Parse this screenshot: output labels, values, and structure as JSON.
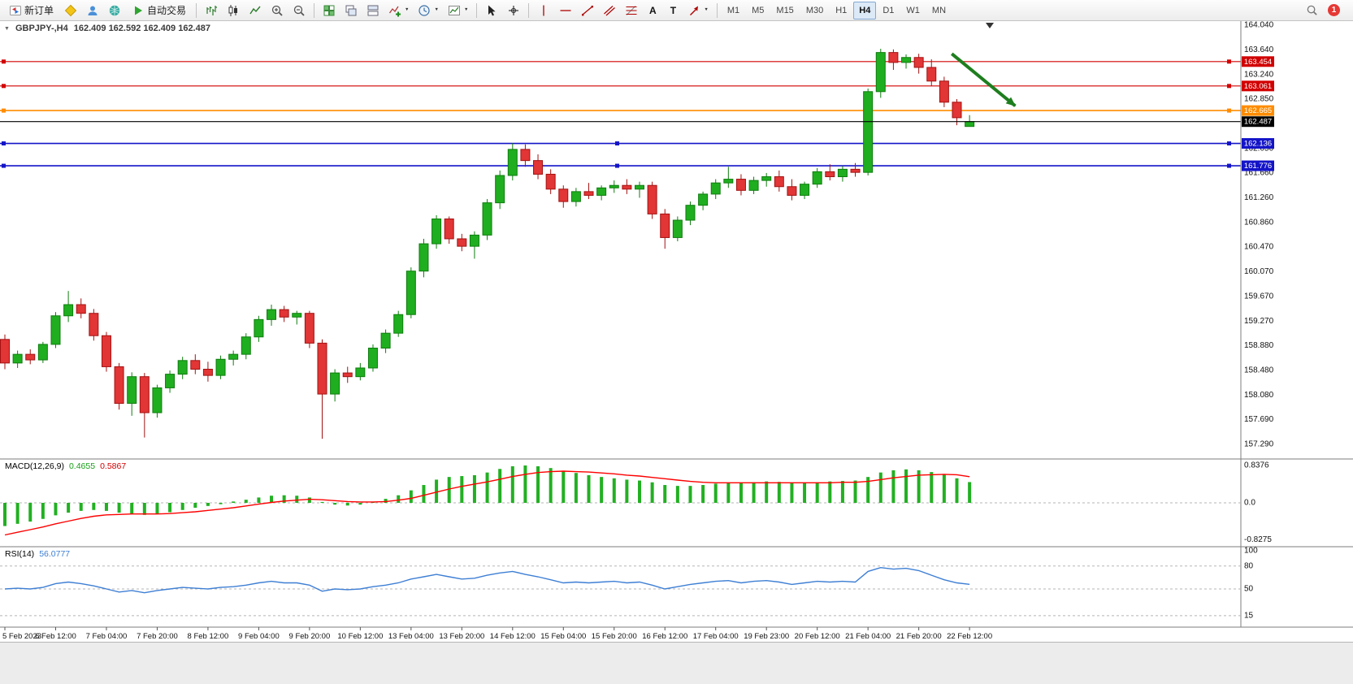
{
  "toolbar": {
    "new_order_label": "新订单",
    "autotrading_label": "自动交易",
    "timeframes": [
      "M1",
      "M5",
      "M15",
      "M30",
      "H1",
      "H4",
      "D1",
      "W1",
      "MN"
    ],
    "active_timeframe": "H4",
    "notification_count": "1"
  },
  "icons": {
    "one_click_trading": "▼",
    "dropdown_caret": "▼",
    "text_tool": "A",
    "label_tool": "T"
  },
  "chart": {
    "title": "GBPJPY-,H4",
    "ohlc_line": "162.409 162.592 162.409 162.487"
  },
  "macd_panel": {
    "label": "MACD(12,26,9)",
    "main_value": "0.4655",
    "signal_value": "0.5867"
  },
  "rsi_panel": {
    "label": "RSI(14)",
    "value": "56.0777"
  },
  "chart_data": {
    "type": "candlestick",
    "symbol": "GBPJPY-",
    "timeframe": "H4",
    "y_axis": {
      "max": 164.04,
      "min": 157.29,
      "ticks": [
        "164.040",
        "163.640",
        "163.240",
        "162.850",
        "162.450",
        "162.050",
        "161.660",
        "161.260",
        "160.860",
        "160.470",
        "160.070",
        "159.670",
        "159.270",
        "158.880",
        "158.480",
        "158.080",
        "157.690",
        "157.290"
      ]
    },
    "x_axis": {
      "label_step": 4,
      "labels": [
        "5 Feb 2023",
        "6 Feb 12:00",
        "7 Feb 04:00",
        "7 Feb 20:00",
        "8 Feb 12:00",
        "9 Feb 04:00",
        "9 Feb 20:00",
        "10 Feb 12:00",
        "13 Feb 04:00",
        "13 Feb 20:00",
        "14 Feb 12:00",
        "15 Feb 04:00",
        "15 Feb 20:00",
        "16 Feb 12:00",
        "17 Feb 04:00",
        "19 Feb 23:00",
        "20 Feb 12:00",
        "21 Feb 04:00",
        "21 Feb 20:00",
        "22 Feb 12:00"
      ]
    },
    "ohlc": [
      [
        158.98,
        159.06,
        158.5,
        158.6
      ],
      [
        158.6,
        158.8,
        158.52,
        158.74
      ],
      [
        158.74,
        158.82,
        158.58,
        158.65
      ],
      [
        158.65,
        158.94,
        158.6,
        158.9
      ],
      [
        158.9,
        159.42,
        158.84,
        159.36
      ],
      [
        159.36,
        159.76,
        159.26,
        159.54
      ],
      [
        159.54,
        159.64,
        159.32,
        159.4
      ],
      [
        159.4,
        159.47,
        158.96,
        159.04
      ],
      [
        159.04,
        159.1,
        158.46,
        158.54
      ],
      [
        158.54,
        158.6,
        157.85,
        157.95
      ],
      [
        157.95,
        158.45,
        157.75,
        158.38
      ],
      [
        158.38,
        158.44,
        157.4,
        157.8
      ],
      [
        157.8,
        158.25,
        157.72,
        158.2
      ],
      [
        158.2,
        158.48,
        158.12,
        158.42
      ],
      [
        158.42,
        158.7,
        158.34,
        158.64
      ],
      [
        158.64,
        158.74,
        158.42,
        158.5
      ],
      [
        158.5,
        158.62,
        158.3,
        158.4
      ],
      [
        158.4,
        158.72,
        158.34,
        158.66
      ],
      [
        158.66,
        158.8,
        158.56,
        158.74
      ],
      [
        158.74,
        159.08,
        158.66,
        159.02
      ],
      [
        159.02,
        159.36,
        158.94,
        159.3
      ],
      [
        159.3,
        159.54,
        159.2,
        159.46
      ],
      [
        159.46,
        159.52,
        159.26,
        159.34
      ],
      [
        159.34,
        159.44,
        159.22,
        159.4
      ],
      [
        159.4,
        159.44,
        158.84,
        158.92
      ],
      [
        158.92,
        158.98,
        157.38,
        158.1
      ],
      [
        158.1,
        158.5,
        157.98,
        158.44
      ],
      [
        158.44,
        158.54,
        158.28,
        158.38
      ],
      [
        158.38,
        158.6,
        158.32,
        158.52
      ],
      [
        158.52,
        158.9,
        158.46,
        158.84
      ],
      [
        158.84,
        159.14,
        158.76,
        159.08
      ],
      [
        159.08,
        159.44,
        159.02,
        159.38
      ],
      [
        159.38,
        160.14,
        159.32,
        160.08
      ],
      [
        160.08,
        160.6,
        159.98,
        160.52
      ],
      [
        160.52,
        160.98,
        160.44,
        160.92
      ],
      [
        160.92,
        160.96,
        160.52,
        160.6
      ],
      [
        160.6,
        160.68,
        160.4,
        160.48
      ],
      [
        160.48,
        160.72,
        160.28,
        160.66
      ],
      [
        160.66,
        161.24,
        160.58,
        161.18
      ],
      [
        161.18,
        161.7,
        161.08,
        161.62
      ],
      [
        161.62,
        162.14,
        161.54,
        162.04
      ],
      [
        162.04,
        162.12,
        161.76,
        161.86
      ],
      [
        161.86,
        161.96,
        161.56,
        161.64
      ],
      [
        161.64,
        161.72,
        161.32,
        161.4
      ],
      [
        161.4,
        161.46,
        161.1,
        161.2
      ],
      [
        161.2,
        161.42,
        161.12,
        161.36
      ],
      [
        161.36,
        161.5,
        161.24,
        161.3
      ],
      [
        161.3,
        161.46,
        161.22,
        161.42
      ],
      [
        161.42,
        161.54,
        161.34,
        161.46
      ],
      [
        161.46,
        161.56,
        161.32,
        161.4
      ],
      [
        161.4,
        161.52,
        161.26,
        161.46
      ],
      [
        161.46,
        161.52,
        160.92,
        161.0
      ],
      [
        161.0,
        161.08,
        160.44,
        160.62
      ],
      [
        160.62,
        160.96,
        160.56,
        160.9
      ],
      [
        160.9,
        161.2,
        160.82,
        161.14
      ],
      [
        161.14,
        161.36,
        161.06,
        161.32
      ],
      [
        161.32,
        161.56,
        161.24,
        161.5
      ],
      [
        161.5,
        161.76,
        161.42,
        161.56
      ],
      [
        161.56,
        161.64,
        161.3,
        161.38
      ],
      [
        161.38,
        161.6,
        161.32,
        161.54
      ],
      [
        161.54,
        161.66,
        161.44,
        161.6
      ],
      [
        161.6,
        161.7,
        161.36,
        161.44
      ],
      [
        161.44,
        161.56,
        161.22,
        161.3
      ],
      [
        161.3,
        161.52,
        161.24,
        161.48
      ],
      [
        161.48,
        161.74,
        161.42,
        161.68
      ],
      [
        161.68,
        161.8,
        161.54,
        161.6
      ],
      [
        161.6,
        161.77,
        161.52,
        161.72
      ],
      [
        161.72,
        161.82,
        161.6,
        161.67
      ],
      [
        161.67,
        163.02,
        161.62,
        162.97
      ],
      [
        162.97,
        163.66,
        162.87,
        163.6
      ],
      [
        163.6,
        163.65,
        163.32,
        163.44
      ],
      [
        163.44,
        163.57,
        163.34,
        163.52
      ],
      [
        163.52,
        163.58,
        163.26,
        163.36
      ],
      [
        163.36,
        163.49,
        163.06,
        163.14
      ],
      [
        163.14,
        163.21,
        162.72,
        162.8
      ],
      [
        162.8,
        162.85,
        162.43,
        162.55
      ],
      [
        162.409,
        162.592,
        162.409,
        162.487
      ]
    ],
    "hlines": [
      {
        "price": 163.454,
        "label": "163.454",
        "color": "#d20000",
        "handles": "ends",
        "width": 1.1
      },
      {
        "price": 163.061,
        "label": "163.061",
        "color": "#d20000",
        "handles": "ends",
        "width": 1.1
      },
      {
        "price": 162.665,
        "label": "162.665",
        "color": "#ff8c00",
        "handles": "ends",
        "width": 1.6
      },
      {
        "price": 162.136,
        "label": "162.136",
        "color": "#1414c8",
        "handles": "full",
        "width": 1.6
      },
      {
        "price": 161.776,
        "label": "161.776",
        "color": "#1414c8",
        "handles": "full",
        "width": 1.6
      }
    ],
    "current_price": {
      "price": 162.487,
      "label": "162.487",
      "color": "#000000"
    },
    "trend_arrow": {
      "from_index": 74.6,
      "from_price": 163.58,
      "to_index": 79.6,
      "to_price": 162.74,
      "color": "#1e7e1e"
    },
    "macd": {
      "scale_ticks": [
        "0.8376",
        "0.0",
        "-0.8275"
      ],
      "histogram": [
        -0.52,
        -0.47,
        -0.42,
        -0.36,
        -0.28,
        -0.22,
        -0.18,
        -0.16,
        -0.18,
        -0.22,
        -0.25,
        -0.27,
        -0.25,
        -0.21,
        -0.16,
        -0.11,
        -0.07,
        -0.03,
        0.03,
        0.07,
        0.12,
        0.16,
        0.17,
        0.16,
        0.12,
        0.02,
        -0.04,
        -0.06,
        -0.04,
        0.02,
        0.09,
        0.17,
        0.28,
        0.4,
        0.52,
        0.58,
        0.6,
        0.62,
        0.68,
        0.76,
        0.82,
        0.8376,
        0.82,
        0.78,
        0.72,
        0.67,
        0.62,
        0.58,
        0.55,
        0.52,
        0.5,
        0.46,
        0.4,
        0.38,
        0.38,
        0.4,
        0.43,
        0.45,
        0.45,
        0.46,
        0.48,
        0.47,
        0.44,
        0.44,
        0.46,
        0.48,
        0.49,
        0.5,
        0.58,
        0.68,
        0.73,
        0.75,
        0.73,
        0.69,
        0.63,
        0.55,
        0.4655
      ],
      "signal": [
        -0.72,
        -0.66,
        -0.6,
        -0.54,
        -0.47,
        -0.41,
        -0.35,
        -0.3,
        -0.27,
        -0.26,
        -0.25,
        -0.25,
        -0.25,
        -0.24,
        -0.22,
        -0.2,
        -0.17,
        -0.14,
        -0.11,
        -0.07,
        -0.03,
        0.01,
        0.04,
        0.06,
        0.08,
        0.07,
        0.05,
        0.03,
        0.02,
        0.02,
        0.03,
        0.06,
        0.1,
        0.17,
        0.24,
        0.31,
        0.37,
        0.42,
        0.47,
        0.53,
        0.59,
        0.64,
        0.68,
        0.7,
        0.71,
        0.7,
        0.69,
        0.67,
        0.65,
        0.62,
        0.6,
        0.57,
        0.54,
        0.51,
        0.48,
        0.46,
        0.45,
        0.45,
        0.45,
        0.45,
        0.45,
        0.45,
        0.45,
        0.45,
        0.45,
        0.45,
        0.46,
        0.46,
        0.48,
        0.52,
        0.56,
        0.59,
        0.62,
        0.63,
        0.64,
        0.63,
        0.5867
      ]
    },
    "rsi": {
      "scale_ticks": [
        "100",
        "80",
        "50",
        "15"
      ],
      "level_lines": [
        80,
        50,
        15
      ],
      "values": [
        50,
        51,
        50,
        52,
        57,
        59,
        57,
        54,
        50,
        46,
        48,
        45,
        48,
        50,
        52,
        51,
        50,
        52,
        53,
        55,
        58,
        60,
        58,
        58,
        55,
        47,
        50,
        49,
        50,
        53,
        55,
        58,
        63,
        66,
        69,
        66,
        63,
        64,
        68,
        71,
        73,
        69,
        66,
        62,
        58,
        59,
        58,
        59,
        60,
        58,
        59,
        55,
        50,
        53,
        56,
        58,
        60,
        61,
        58,
        60,
        61,
        59,
        56,
        58,
        60,
        59,
        60,
        59,
        73,
        78,
        76,
        77,
        74,
        68,
        62,
        58,
        56.0777
      ]
    },
    "colors": {
      "bull": "#1fae1f",
      "bear": "#e23535",
      "bull_border": "#0f7d0f",
      "bear_border": "#a31212",
      "macd_histogram": "#22b022",
      "macd_signal": "#ff0000",
      "rsi_line": "#3e7fd4"
    }
  }
}
